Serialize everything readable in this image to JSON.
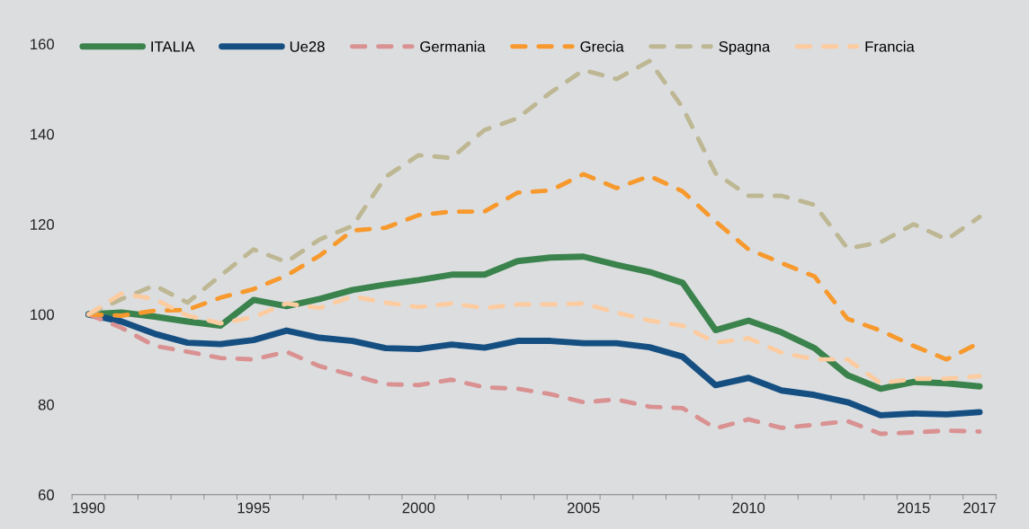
{
  "chart_data": {
    "type": "line",
    "categories": [
      "1990",
      null,
      null,
      null,
      null,
      "1995",
      null,
      null,
      null,
      null,
      "2000",
      null,
      null,
      null,
      null,
      "2005",
      null,
      null,
      null,
      null,
      "2010",
      null,
      null,
      null,
      null,
      "2015",
      null,
      "2017"
    ],
    "ylim": [
      60,
      160
    ],
    "yticks": [
      60,
      80,
      100,
      120,
      140,
      160
    ],
    "grid": false,
    "legend": "top left",
    "series": [
      {
        "name": "ITALIA",
        "color": "#3a834c",
        "line_style": "solid",
        "values": [
          100,
          100.4,
          99.5,
          98.4,
          97.5,
          103.2,
          101.8,
          103.4,
          105.4,
          106.6,
          107.6,
          108.8,
          108.8,
          111.8,
          112.6,
          112.8,
          111,
          109.4,
          107,
          96.5,
          98.6,
          96,
          92.5,
          86.5,
          83.5,
          85,
          84.7,
          84
        ]
      },
      {
        "name": "Ue28",
        "color": "#154f82",
        "line_style": "solid",
        "values": [
          100,
          98.4,
          95.7,
          93.7,
          93.4,
          94.3,
          96.4,
          94.8,
          94.1,
          92.5,
          92.3,
          93.3,
          92.6,
          94.1,
          94.1,
          93.6,
          93.6,
          92.7,
          90.6,
          84.3,
          85.9,
          83.1,
          82.1,
          80.5,
          77.6,
          78,
          77.8,
          78.3
        ]
      },
      {
        "name": "Germania",
        "color": "#d99191",
        "line_style": "dashed",
        "values": [
          100,
          97,
          93,
          91.7,
          90.3,
          90,
          91.7,
          88.5,
          86.5,
          84.5,
          84.3,
          85.5,
          83.8,
          83.5,
          82.3,
          80.5,
          81.1,
          79.5,
          79.2,
          74.7,
          76.7,
          74.8,
          75.5,
          76.3,
          73.5,
          73.8,
          74.2,
          74
        ]
      },
      {
        "name": "Grecia",
        "color": "#f7992d",
        "line_style": "dashed",
        "values": [
          100,
          99.7,
          100.8,
          101,
          103.7,
          105.6,
          108.6,
          113,
          118.6,
          119.2,
          122,
          122.8,
          122.8,
          127,
          127.5,
          131.1,
          128,
          130.7,
          127.3,
          120.6,
          114.4,
          111.4,
          108.4,
          99,
          96.4,
          93,
          90,
          93.7
        ]
      },
      {
        "name": "Spagna",
        "color": "#bdb793",
        "line_style": "dashed",
        "values": [
          100,
          103.4,
          106.4,
          102.6,
          108.6,
          114.4,
          111.6,
          116.6,
          119.6,
          130.5,
          135.3,
          134.7,
          140.9,
          143.5,
          149.2,
          154.2,
          152.2,
          156.2,
          145.9,
          131.3,
          126.3,
          126.3,
          124.3,
          114.6,
          116,
          120,
          116.6,
          121.6
        ]
      },
      {
        "name": "Francia",
        "color": "#fccca0",
        "line_style": "dashed",
        "values": [
          100,
          104.6,
          103.4,
          99.7,
          98,
          99.4,
          102.4,
          101.4,
          104,
          102.6,
          101.6,
          102.4,
          101.4,
          102.2,
          102.2,
          102.4,
          100.4,
          98.6,
          97.5,
          93.7,
          94.7,
          91.5,
          90,
          90,
          84.7,
          85.7,
          85.7,
          86.3
        ]
      }
    ]
  }
}
